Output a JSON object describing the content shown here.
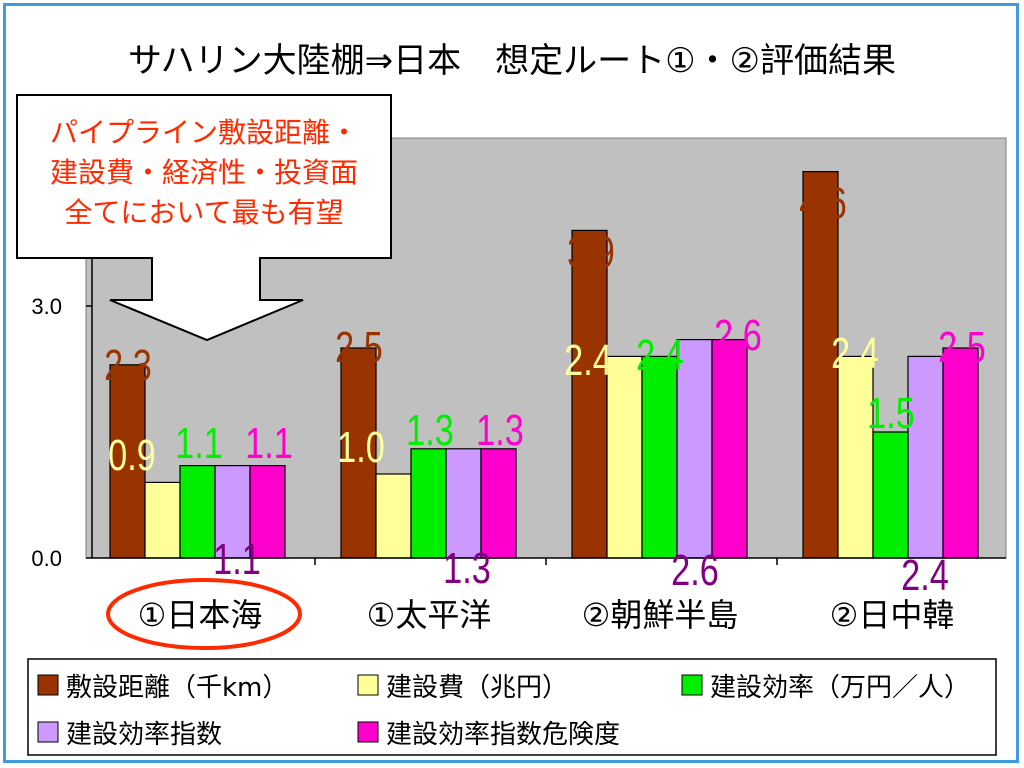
{
  "chart_data": {
    "type": "bar",
    "title": "サハリン大陸棚⇒日本　想定ルート①・②評価結果",
    "categories": [
      "①日本海",
      "①太平洋",
      "②朝鮮半島",
      "②日中韓"
    ],
    "highlight_category_index": 0,
    "highlight_color": "#ff2a00",
    "ylim": [
      0,
      5.0
    ],
    "yticks": [
      {
        "value": 0,
        "label": "0.0"
      },
      {
        "value": 3,
        "label": "3.0"
      }
    ],
    "plot_background": "#c0c0c0",
    "series": [
      {
        "name": "敷設距離(千km)",
        "color": "#993300",
        "values": [
          2.3,
          2.5,
          3.9,
          4.6
        ],
        "labels": [
          "2.3",
          "2.5",
          "3.9",
          "4.6"
        ],
        "label_color": "#993300"
      },
      {
        "name": "建設費(兆円)",
        "color": "#ffff99",
        "values": [
          0.9,
          1.0,
          2.4,
          2.4
        ],
        "labels": [
          "0.9",
          "1.0",
          "2.4",
          "2.4"
        ],
        "label_color": "#ffff99"
      },
      {
        "name": "建設効率(万円/人)",
        "color": "#00ee00",
        "values": [
          1.1,
          1.3,
          2.4,
          1.5
        ],
        "labels": [
          "1.1",
          "1.3",
          "2.4",
          "1.5"
        ],
        "label_color": "#00ee00"
      },
      {
        "name": "建設効率指数",
        "color": "#cc99ff",
        "values": [
          1.1,
          1.3,
          2.6,
          2.4
        ],
        "labels": [
          "1.1",
          "1.3",
          "2.6",
          "2.4"
        ],
        "label_color": "#800080"
      },
      {
        "name": "建設効率指数危険度",
        "color": "#ff00cc",
        "values": [
          1.1,
          1.3,
          2.6,
          2.5
        ],
        "labels": [
          "1.1",
          "1.3",
          "2.6",
          "2.5"
        ],
        "label_color": "#ff00cc"
      }
    ],
    "legend_entries": [
      "敷設距離（千km）",
      "建設費（兆円）",
      "建設効率（万円／人）",
      "建設効率指数",
      "建設効率指数危険度"
    ],
    "legend_position": "bottom",
    "callout": {
      "lines": [
        "パイプライン敷設距離・",
        "建設費・経済性・投資面",
        "全てにおいて最も有望"
      ],
      "text_color": "#ff2a00"
    }
  }
}
